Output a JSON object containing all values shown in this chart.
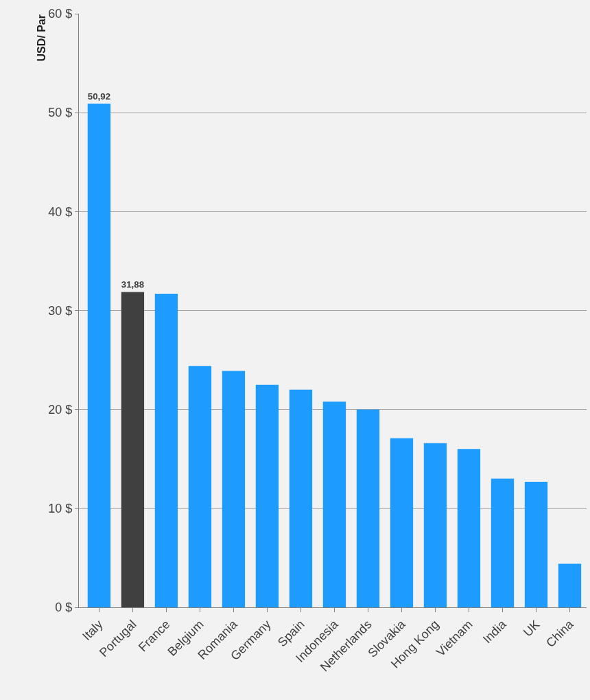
{
  "chart_data": {
    "type": "bar",
    "ylabel": "USD/ Par",
    "categories": [
      "Italy",
      "Portugal",
      "France",
      "Belgium",
      "Romania",
      "Germany",
      "Spain",
      "Indonesia",
      "Netherlands",
      "Slovakia",
      "Hong Kong",
      "Vietnam",
      "India",
      "UK",
      "China"
    ],
    "values": [
      50.92,
      31.88,
      31.7,
      24.4,
      23.9,
      22.5,
      22.0,
      20.8,
      20.0,
      17.1,
      16.6,
      16.0,
      13.0,
      12.7,
      4.4
    ],
    "value_labels": [
      "50,92",
      "31,88",
      null,
      null,
      null,
      null,
      null,
      null,
      null,
      null,
      null,
      null,
      null,
      null,
      null
    ],
    "colors": [
      "#1e9bff",
      "#404040",
      "#1e9bff",
      "#1e9bff",
      "#1e9bff",
      "#1e9bff",
      "#1e9bff",
      "#1e9bff",
      "#1e9bff",
      "#1e9bff",
      "#1e9bff",
      "#1e9bff",
      "#1e9bff",
      "#1e9bff",
      "#1e9bff"
    ],
    "ylim": [
      0,
      60
    ],
    "yticks": [
      {
        "value": 0,
        "label": "0 $"
      },
      {
        "value": 10,
        "label": "10 $"
      },
      {
        "value": 20,
        "label": "20 $"
      },
      {
        "value": 30,
        "label": "30 $"
      },
      {
        "value": 40,
        "label": "40 $"
      },
      {
        "value": 50,
        "label": "50 $"
      },
      {
        "value": 60,
        "label": "60 $"
      }
    ],
    "grid": "y"
  }
}
